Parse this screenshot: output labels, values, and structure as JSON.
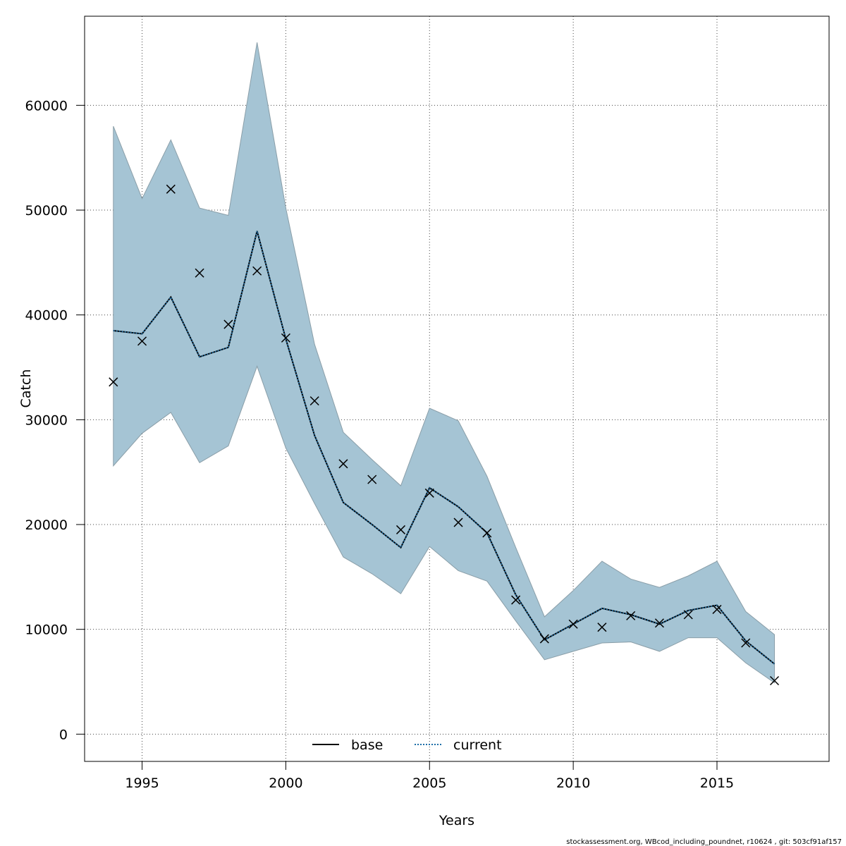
{
  "chart_data": {
    "type": "line",
    "xlabel": "Years",
    "ylabel": "Catch",
    "xlim": [
      1993,
      2018.9
    ],
    "ylim": [
      -2600,
      68500
    ],
    "x_ticks": [
      1995,
      2000,
      2005,
      2010,
      2015
    ],
    "y_ticks": [
      0,
      10000,
      20000,
      30000,
      40000,
      50000,
      60000
    ],
    "grid": true,
    "legend_position": "bottom-center",
    "years": [
      1994,
      1995,
      1996,
      1997,
      1998,
      1999,
      2000,
      2001,
      2002,
      2003,
      2004,
      2005,
      2006,
      2007,
      2008,
      2009,
      2010,
      2011,
      2012,
      2013,
      2014,
      2015,
      2016,
      2017
    ],
    "observed": [
      33600,
      37500,
      52000,
      44000,
      39100,
      44200,
      37800,
      31800,
      25800,
      24300,
      19500,
      23000,
      20200,
      19200,
      12800,
      9100,
      10500,
      10200,
      11300,
      10600,
      11400,
      11900,
      8700,
      5100
    ],
    "band_upper": [
      58000,
      51100,
      56700,
      50200,
      49500,
      66000,
      50200,
      37200,
      28800,
      26200,
      23700,
      31100,
      29900,
      24600,
      17800,
      11200,
      13700,
      16500,
      14800,
      14000,
      15100,
      16500,
      11700,
      9500
    ],
    "band_lower": [
      25600,
      28700,
      30700,
      25900,
      27500,
      35100,
      27300,
      22000,
      16900,
      15300,
      13400,
      17900,
      15600,
      14600,
      10800,
      7100,
      7900,
      8700,
      8800,
      7900,
      9200,
      9200,
      6800,
      4900
    ],
    "series": [
      {
        "name": "base",
        "values": [
          38500,
          38200,
          41700,
          36000,
          36900,
          48000,
          37700,
          28500,
          22100,
          20000,
          17800,
          23500,
          21700,
          19200,
          13300,
          9000,
          10500,
          12000,
          11400,
          10500,
          11800,
          12300,
          8900,
          6700
        ],
        "color": "#000000",
        "style": "solid"
      },
      {
        "name": "current",
        "values": [
          38500,
          38200,
          41700,
          36000,
          36900,
          48000,
          37700,
          28500,
          22100,
          20000,
          17800,
          23500,
          21700,
          19200,
          13300,
          9000,
          10500,
          12000,
          11400,
          10500,
          11800,
          12300,
          8900,
          6700
        ],
        "color": "#1e6fa8",
        "style": "dotted"
      }
    ],
    "band_color": "#a5c4d4",
    "marker": "x"
  },
  "footer": {
    "source": "stockassessment.org, WBcod_including_poundnet, r10624 , git: 503cf91af157"
  }
}
